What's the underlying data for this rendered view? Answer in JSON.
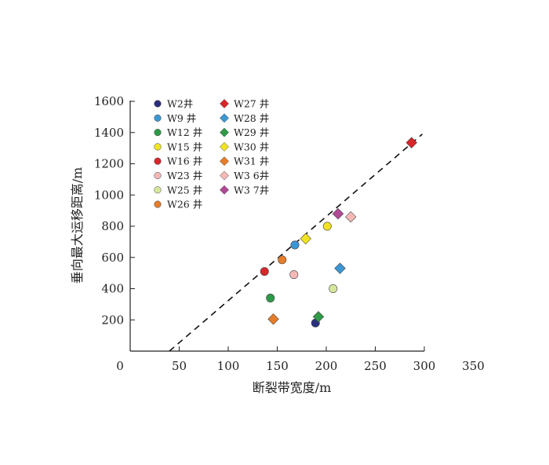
{
  "chart_data": {
    "type": "scatter",
    "xlabel": "断裂带宽度/m",
    "ylabel": "垂向最大运移距离/m",
    "xlim": [
      0,
      350
    ],
    "ylim": [
      0,
      1600
    ],
    "xticks": [
      0,
      50,
      100,
      150,
      200,
      250,
      300,
      350
    ],
    "yticks": [
      200,
      400,
      600,
      800,
      1000,
      1200,
      1400,
      1600
    ],
    "grid": false,
    "legend_position": "top-left",
    "trendline": {
      "style": "dashed",
      "color": "#111111",
      "from": [
        40,
        0
      ],
      "to": [
        298,
        1390
      ]
    },
    "series": [
      {
        "name": "W2井",
        "marker": "circle",
        "color": "#2a2f7d",
        "x": 189,
        "y": 180
      },
      {
        "name": "W9 井",
        "marker": "circle",
        "color": "#3b97d3",
        "x": 168,
        "y": 680
      },
      {
        "name": "W12 井",
        "marker": "circle",
        "color": "#2e9a47",
        "x": 143,
        "y": 340
      },
      {
        "name": "W15 井",
        "marker": "circle",
        "color": "#f2e322",
        "x": 201,
        "y": 800
      },
      {
        "name": "W16 井",
        "marker": "circle",
        "color": "#d9262a",
        "x": 137,
        "y": 510
      },
      {
        "name": "W23 井",
        "marker": "circle",
        "color": "#f6b8b6",
        "x": 167,
        "y": 490
      },
      {
        "name": "W25 井",
        "marker": "circle",
        "color": "#d6e79a",
        "x": 207,
        "y": 400
      },
      {
        "name": "W26 井",
        "marker": "circle",
        "color": "#e67d2a",
        "x": 155,
        "y": 585
      },
      {
        "name": "W27 井",
        "marker": "diamond",
        "color": "#d9262a",
        "x": 287,
        "y": 1335
      },
      {
        "name": "W28 井",
        "marker": "diamond",
        "color": "#3b97d3",
        "x": 214,
        "y": 530
      },
      {
        "name": "W29 井",
        "marker": "diamond",
        "color": "#2e9a47",
        "x": 192,
        "y": 220
      },
      {
        "name": "W30 井",
        "marker": "diamond",
        "color": "#f2e322",
        "x": 179,
        "y": 720
      },
      {
        "name": "W31 井",
        "marker": "diamond",
        "color": "#e67d2a",
        "x": 146,
        "y": 205
      },
      {
        "name": "W3 6井",
        "marker": "diamond",
        "color": "#f6b8b6",
        "x": 225,
        "y": 860
      },
      {
        "name": "W3 7井",
        "marker": "diamond",
        "color": "#b04a96",
        "x": 212,
        "y": 880
      }
    ]
  }
}
